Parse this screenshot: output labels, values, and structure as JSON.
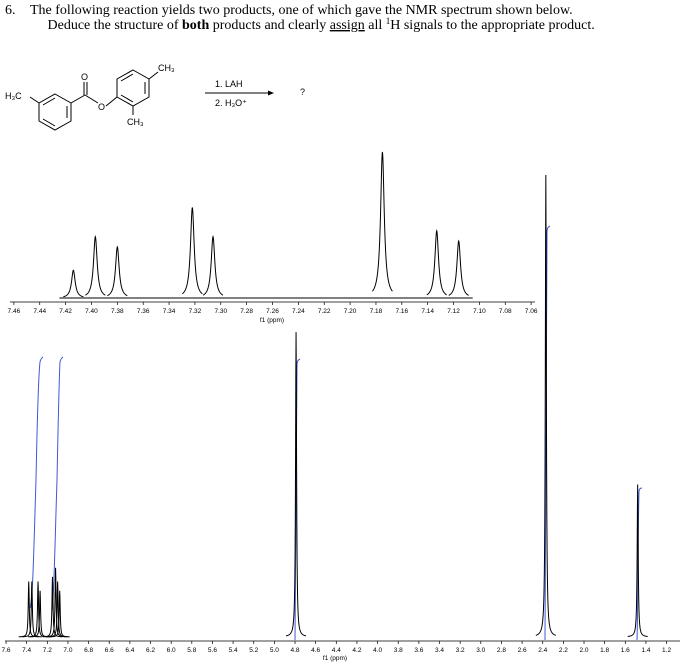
{
  "question": {
    "number": "6.",
    "line1": "The following reaction yields two products, one of which gave the NMR spectrum shown below.",
    "line2": [
      "Deduce the structure of ",
      "both",
      " products and clearly ",
      "assign",
      " all ",
      "1",
      "H signals to the appropriate product."
    ]
  },
  "reaction": {
    "labels": [
      "H₃C",
      "O",
      "O",
      "CH₃",
      "CH₃"
    ],
    "reagents": [
      "1. LAH",
      "2. H₃O⁺"
    ],
    "product": "?"
  },
  "chart_data": [
    {
      "type": "spectrum",
      "xlabel": "f1 (ppm)",
      "xlim": [
        7.463,
        7.057
      ],
      "ylim": [
        0,
        100
      ],
      "color": "#000000",
      "xticks": [
        7.46,
        7.44,
        7.42,
        {
          "value": 7.4,
          "label": "7.40"
        },
        7.38,
        7.36,
        7.34,
        7.32,
        {
          "value": 7.3,
          "label": "7.30"
        },
        7.28,
        7.26,
        7.24,
        7.22,
        {
          "value": 7.2,
          "label": "7.20"
        },
        7.18,
        7.16,
        7.14,
        7.12,
        {
          "value": 7.1,
          "label": "7.10"
        },
        7.08,
        7.06
      ],
      "peaks": {
        "ppm": [
          7.414,
          7.397,
          7.38,
          7.322,
          7.306,
          7.175,
          7.133,
          7.116
        ],
        "intensity": [
          19,
          42,
          35,
          62,
          42,
          100,
          46,
          39
        ]
      }
    },
    {
      "type": "spectrum",
      "xlabel": "f1 (ppm)",
      "xlim": [
        7.61,
        1.07
      ],
      "ylim": [
        0,
        100
      ],
      "color": "#000000",
      "xticks": [
        7.6,
        7.4,
        7.2,
        {
          "value": 7,
          "label": "7.0"
        },
        6.8,
        6.6,
        6.4,
        6.2,
        {
          "value": 6,
          "label": "6.0"
        },
        5.8,
        5.6,
        5.4,
        5.2,
        {
          "value": 5,
          "label": "5.0"
        },
        4.8,
        4.6,
        4.4,
        4.2,
        {
          "value": 4,
          "label": "4.0"
        },
        3.8,
        3.6,
        3.4,
        3.2,
        {
          "value": 3,
          "label": "3.0"
        },
        2.8,
        2.6,
        2.4,
        2.2,
        {
          "value": 2,
          "label": "2.0"
        },
        1.8,
        1.6,
        1.4,
        1.2
      ],
      "peaks": {
        "ppm": [
          7.38,
          7.35,
          7.29,
          7.27,
          7.15,
          7.12,
          7.1,
          7.08,
          4.79,
          2.37,
          1.48
        ],
        "intensity": [
          12,
          12,
          12,
          10,
          13,
          15,
          12,
          10,
          66,
          100,
          33
        ]
      }
    }
  ]
}
